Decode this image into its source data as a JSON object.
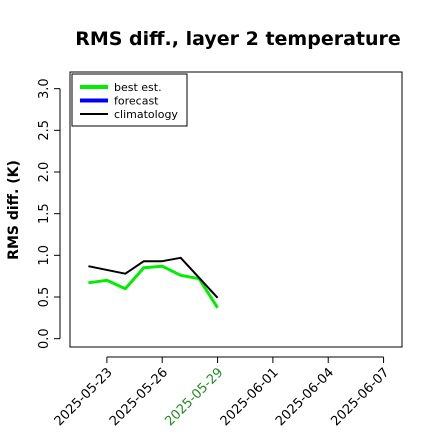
{
  "chart_data": {
    "type": "line",
    "title": "RMS diff., layer 2 temperature",
    "ylabel": "RMS diff. (K)",
    "xlabel": "",
    "ylim": [
      -0.1,
      3.2
    ],
    "xlim": [
      "2025-05-21",
      "2025-06-08"
    ],
    "yticks": [
      "0.0",
      "0.5",
      "1.0",
      "1.5",
      "2.0",
      "2.5",
      "3.0"
    ],
    "xticks": [
      {
        "label": "2025-05-23",
        "color": "#000000"
      },
      {
        "label": "2025-05-26",
        "color": "#000000"
      },
      {
        "label": "2025-05-29",
        "color": "#228B22"
      },
      {
        "label": "2025-06-01",
        "color": "#000000"
      },
      {
        "label": "2025-06-04",
        "color": "#000000"
      },
      {
        "label": "2025-06-07",
        "color": "#000000"
      }
    ],
    "grid": false,
    "legend_position": "top-left",
    "series": [
      {
        "name": "best est.",
        "color": "#00ee00",
        "x": [
          "2025-05-22",
          "2025-05-23",
          "2025-05-24",
          "2025-05-25",
          "2025-05-26",
          "2025-05-27",
          "2025-05-28",
          "2025-05-29"
        ],
        "values": [
          0.67,
          0.7,
          0.6,
          0.85,
          0.87,
          0.76,
          0.72,
          0.37
        ]
      },
      {
        "name": "forecast",
        "color": "#0000ff",
        "x": [],
        "values": []
      },
      {
        "name": "climatology",
        "color": "#000000",
        "x": [
          "2025-05-22",
          "2025-05-24",
          "2025-05-25",
          "2025-05-26",
          "2025-05-27",
          "2025-05-29"
        ],
        "values": [
          0.87,
          0.78,
          0.93,
          0.93,
          0.97,
          0.49
        ]
      }
    ]
  }
}
